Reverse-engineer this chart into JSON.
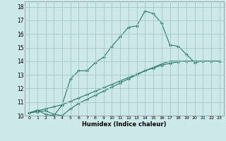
{
  "xlabel": "Humidex (Indice chaleur)",
  "bg_color": "#cce8e8",
  "line_color": "#2a7a6a",
  "grid_color": "#aacaca",
  "xlim": [
    -0.5,
    23.5
  ],
  "ylim": [
    10,
    18.4
  ],
  "xticks": [
    0,
    1,
    2,
    3,
    4,
    5,
    6,
    7,
    8,
    9,
    10,
    11,
    12,
    13,
    14,
    15,
    16,
    17,
    18,
    19,
    20,
    21,
    22,
    23
  ],
  "yticks": [
    10,
    11,
    12,
    13,
    14,
    15,
    16,
    17,
    18
  ],
  "line1_x": [
    0,
    1,
    2,
    3,
    4,
    5,
    6,
    7,
    8,
    9,
    10,
    11,
    12,
    13,
    14,
    15,
    16,
    17,
    18,
    19,
    20,
    21,
    22,
    23
  ],
  "line1_y": [
    10.2,
    10.4,
    10.1,
    10.0,
    10.8,
    12.7,
    13.3,
    13.3,
    13.9,
    14.3,
    15.1,
    15.8,
    16.5,
    16.6,
    17.7,
    17.5,
    16.8,
    15.2,
    15.1,
    14.5,
    13.9,
    14.0,
    14.0,
    14.0
  ],
  "line2_x": [
    0,
    1,
    2,
    3,
    4,
    5,
    6,
    7,
    8,
    9,
    10,
    11,
    12,
    13,
    14,
    15,
    16,
    17,
    18,
    19,
    20,
    21,
    22,
    23
  ],
  "line2_y": [
    10.2,
    10.35,
    10.5,
    10.65,
    10.8,
    11.05,
    11.3,
    11.55,
    11.8,
    12.05,
    12.3,
    12.55,
    12.8,
    13.05,
    13.3,
    13.55,
    13.8,
    14.0,
    14.0,
    14.0,
    14.0,
    14.0,
    14.0,
    14.0
  ],
  "line3_x": [
    0,
    1,
    2,
    3,
    4,
    5,
    6,
    7,
    8,
    9,
    10,
    11,
    12,
    13,
    14,
    15,
    16,
    17,
    18,
    19,
    20,
    21,
    22,
    23
  ],
  "line3_y": [
    10.2,
    10.28,
    10.36,
    10.1,
    10.0,
    10.5,
    10.9,
    11.2,
    11.5,
    11.8,
    12.1,
    12.4,
    12.7,
    13.0,
    13.3,
    13.5,
    13.7,
    13.85,
    13.95,
    14.0,
    14.0,
    14.0,
    14.0,
    14.0
  ]
}
